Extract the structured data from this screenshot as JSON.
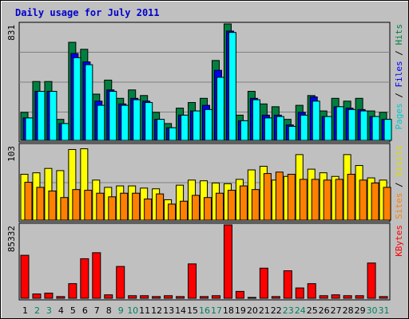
{
  "chart_data": {
    "type": "bar",
    "title": "Daily usage for July 2011",
    "categories": [
      "1",
      "2",
      "3",
      "4",
      "5",
      "6",
      "7",
      "8",
      "9",
      "10",
      "11",
      "12",
      "13",
      "14",
      "15",
      "16",
      "17",
      "18",
      "19",
      "20",
      "21",
      "22",
      "23",
      "24",
      "25",
      "26",
      "27",
      "28",
      "29",
      "30",
      "31"
    ],
    "weekend_days": [
      2,
      3,
      9,
      10,
      16,
      17,
      23,
      24,
      30,
      31
    ],
    "colors": {
      "hits": "#008040",
      "files": "#0000ff",
      "pages": "#00ffff",
      "visits": "#ffff00",
      "sites": "#ff8000",
      "kbytes": "#ff0000",
      "weekday": "#000000",
      "weekend": "#00805c",
      "title": "#0000cc"
    },
    "panels": [
      {
        "id": "hits",
        "max_label": "831",
        "ymax": 831,
        "right_label": [
          {
            "text": "Pages",
            "color": "#00c8c8"
          },
          {
            "text": " / ",
            "color": "#000000"
          },
          {
            "text": "Files",
            "color": "#0000ff"
          },
          {
            "text": " / ",
            "color": "#000000"
          },
          {
            "text": "Hits",
            "color": "#008040"
          }
        ],
        "series": [
          {
            "name": "Hits",
            "color": "#008040",
            "values": [
              200,
              420,
              420,
              150,
              700,
              650,
              330,
              430,
              300,
              360,
              320,
              200,
              120,
              230,
              270,
              300,
              570,
              831,
              180,
              350,
              260,
              240,
              150,
              250,
              320,
              210,
              300,
              280,
              300,
              210,
              200
            ]
          },
          {
            "name": "Files",
            "color": "#0000ff",
            "values": [
              160,
              350,
              350,
              120,
              620,
              560,
              280,
              360,
              260,
              300,
              280,
              150,
              90,
              180,
              210,
              250,
              500,
              780,
              140,
              300,
              180,
              180,
              110,
              200,
              310,
              170,
              240,
              230,
              220,
              170,
              150
            ]
          },
          {
            "name": "Pages",
            "color": "#00ffff",
            "values": [
              160,
              350,
              350,
              120,
              590,
              540,
              250,
              350,
              250,
              290,
              270,
              150,
              90,
              180,
              210,
              220,
              450,
              770,
              140,
              290,
              160,
              170,
              100,
              180,
              280,
              170,
              240,
              220,
              210,
              170,
              150
            ]
          }
        ]
      },
      {
        "id": "visits",
        "max_label": "103",
        "ymax": 103,
        "right_label": [
          {
            "text": "Sites",
            "color": "#ff8000"
          },
          {
            "text": " / ",
            "color": "#000000"
          },
          {
            "text": "Visits",
            "color": "#dcdc00"
          }
        ],
        "series": [
          {
            "name": "Visits",
            "color": "#ffff00",
            "values": [
              63,
              65,
              71,
              68,
              97,
              98,
              55,
              45,
              47,
              47,
              44,
              43,
              28,
              48,
              55,
              54,
              51,
              50,
              56,
              69,
              74,
              55,
              60,
              90,
              70,
              65,
              60,
              90,
              75,
              58,
              55
            ]
          },
          {
            "name": "Sites",
            "color": "#ff8000",
            "values": [
              52,
              45,
              40,
              31,
              42,
              41,
              37,
              32,
              37,
              37,
              29,
              36,
              22,
              26,
              34,
              31,
              37,
              41,
              47,
              42,
              64,
              66,
              63,
              56,
              56,
              55,
              56,
              63,
              55,
              51,
              45
            ]
          }
        ]
      },
      {
        "id": "kbytes",
        "max_label": "85332",
        "ymax": 85332,
        "right_label": [
          {
            "text": "KBytes",
            "color": "#ff0000"
          }
        ],
        "series": [
          {
            "name": "KBytes",
            "color": "#ff0000",
            "values": [
              50000,
              5000,
              6000,
              2000,
              17000,
              46000,
              53000,
              4000,
              37000,
              3000,
              3000,
              2000,
              3000,
              2000,
              40000,
              2000,
              3000,
              85332,
              8000,
              1000,
              35000,
              2000,
              32000,
              12000,
              17000,
              3000,
              4000,
              3000,
              3000,
              41000,
              2000
            ]
          }
        ]
      }
    ]
  }
}
